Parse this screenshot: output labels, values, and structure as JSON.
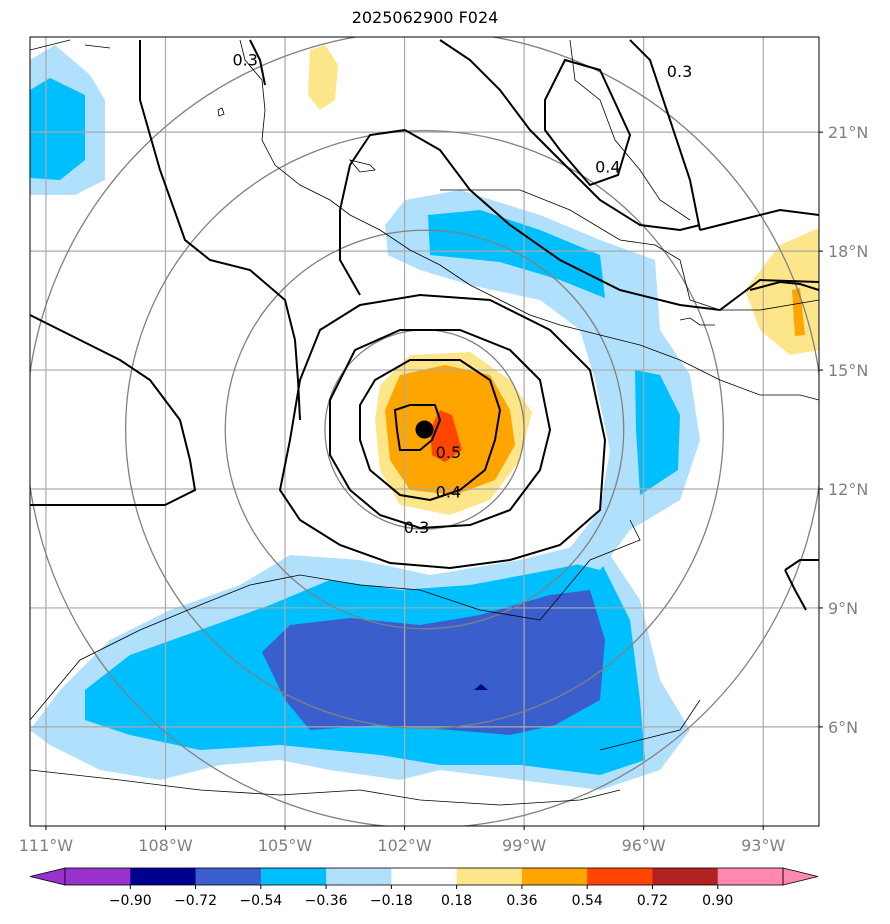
{
  "title": "2025062900 F024",
  "map": {
    "lon_range": [
      -111.4,
      -91.6
    ],
    "lat_range": [
      3.5,
      23.4
    ],
    "lon_ticks": [
      {
        "value": -111,
        "label": "111°W"
      },
      {
        "value": -108,
        "label": "108°W"
      },
      {
        "value": -105,
        "label": "105°W"
      },
      {
        "value": -102,
        "label": "102°W"
      },
      {
        "value": -99,
        "label": "99°W"
      },
      {
        "value": -96,
        "label": "96°W"
      },
      {
        "value": -93,
        "label": "93°W"
      }
    ],
    "lat_ticks": [
      {
        "value": 6,
        "label": "6°N"
      },
      {
        "value": 9,
        "label": "9°N"
      },
      {
        "value": 12,
        "label": "12°N"
      },
      {
        "value": 15,
        "label": "15°N"
      },
      {
        "value": 18,
        "label": "18°N"
      },
      {
        "value": 21,
        "label": "21°N"
      }
    ],
    "grid": true,
    "storm_center": {
      "lon": -101.5,
      "lat": 13.5
    },
    "range_rings_deg": [
      2.5,
      5,
      7.5,
      10
    ],
    "contour_labels": [
      {
        "text": "0.3",
        "lon": -106.0,
        "lat": 22.8
      },
      {
        "text": "0.3",
        "lon": -95.1,
        "lat": 22.5
      },
      {
        "text": "0.4",
        "lon": -96.9,
        "lat": 20.1
      },
      {
        "text": "0.5",
        "lon": -100.9,
        "lat": 12.9
      },
      {
        "text": "0.4",
        "lon": -100.9,
        "lat": 11.9
      },
      {
        "text": "0.3",
        "lon": -101.7,
        "lat": 11.0
      }
    ]
  },
  "colorbar": {
    "levels": [
      "−0.90",
      "−0.72",
      "−0.54",
      "−0.36",
      "−0.18",
      "0.18",
      "0.36",
      "0.54",
      "0.72",
      "0.90"
    ],
    "colors": [
      "#9932cc",
      "#000090",
      "#3a5fcd",
      "#00bfff",
      "#b0e0fc",
      "#ffffff",
      "#fde68a",
      "#ffa500",
      "#ff4500",
      "#b22222",
      "#ff88b0"
    ]
  }
}
